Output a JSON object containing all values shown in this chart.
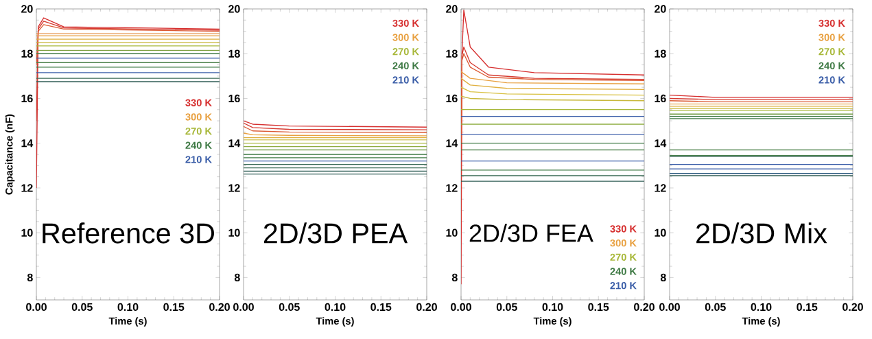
{
  "chart_data": [
    {
      "type": "line",
      "title": "Reference 3D",
      "ylabel": "Capacitance (nF)",
      "xlabel": "Time (s)",
      "xlim": [
        0,
        0.2
      ],
      "ylim": [
        7,
        20
      ],
      "xticks": [
        {
          "value": 0,
          "label": "0.00"
        },
        {
          "value": 0.05,
          "label": "0.05"
        },
        {
          "value": 0.1,
          "label": "0.10"
        },
        {
          "value": 0.15,
          "label": "0.15"
        },
        {
          "value": 0.2,
          "label": "0.20"
        }
      ],
      "yticks": [
        8,
        10,
        12,
        14,
        16,
        18,
        20
      ],
      "legend": "right",
      "marker": "none",
      "line_style": "solid",
      "series": [
        {
          "name": "330 K",
          "color": "#d62f2f",
          "x": [
            0,
            0.002,
            0.008,
            0.03,
            0.2
          ],
          "values": [
            12.0,
            19.2,
            19.6,
            19.2,
            19.1
          ]
        },
        {
          "color": "#d63a30",
          "x": [
            0,
            0.002,
            0.008,
            0.03,
            0.2
          ],
          "values": [
            15.0,
            19.1,
            19.45,
            19.15,
            19.05
          ]
        },
        {
          "color": "#dc5a34",
          "x": [
            0,
            0.002,
            0.008,
            0.03,
            0.2
          ],
          "values": [
            17.5,
            19.0,
            19.3,
            19.1,
            19.0
          ]
        },
        {
          "color": "#e38a3c",
          "x": [
            0,
            0.2
          ],
          "values": [
            18.9,
            18.9
          ]
        },
        {
          "name": "300 K",
          "color": "#e8a040",
          "x": [
            0,
            0.2
          ],
          "values": [
            18.8,
            18.8
          ]
        },
        {
          "color": "#e0b040",
          "x": [
            0,
            0.2
          ],
          "values": [
            18.65,
            18.65
          ]
        },
        {
          "color": "#c8b83c",
          "x": [
            0,
            0.2
          ],
          "values": [
            18.5,
            18.5
          ]
        },
        {
          "name": "270 K",
          "color": "#a8b83a",
          "x": [
            0,
            0.2
          ],
          "values": [
            18.35,
            18.35
          ]
        },
        {
          "color": "#7ea040",
          "x": [
            0,
            0.2
          ],
          "values": [
            18.15,
            18.15
          ]
        },
        {
          "name": "240 K",
          "color": "#3f7a45",
          "x": [
            0,
            0.2
          ],
          "values": [
            18.0,
            18.0
          ]
        },
        {
          "name": "210 K",
          "color": "#3b5ea8",
          "x": [
            0,
            0.2
          ],
          "values": [
            17.8,
            17.8
          ]
        },
        {
          "color": "#4a8048",
          "x": [
            0,
            0.2
          ],
          "values": [
            17.6,
            17.6
          ]
        },
        {
          "color": "#3f7a45",
          "x": [
            0,
            0.2
          ],
          "values": [
            17.4,
            17.4
          ]
        },
        {
          "color": "#3b5ea8",
          "x": [
            0,
            0.2
          ],
          "values": [
            17.15,
            17.15
          ]
        },
        {
          "color": "#3a6a55",
          "x": [
            0,
            0.2
          ],
          "values": [
            16.9,
            16.9
          ]
        },
        {
          "color": "#2f5d55",
          "x": [
            0,
            0.2
          ],
          "values": [
            16.75,
            16.75
          ]
        }
      ]
    },
    {
      "type": "line",
      "title": "2D/3D PEA",
      "xlabel": "Time (s)",
      "xlim": [
        0,
        0.2
      ],
      "ylim": [
        7,
        20
      ],
      "xticks": [
        {
          "value": 0,
          "label": "0.00"
        },
        {
          "value": 0.05,
          "label": "0.05"
        },
        {
          "value": 0.1,
          "label": "0.10"
        },
        {
          "value": 0.15,
          "label": "0.15"
        },
        {
          "value": 0.2,
          "label": "0.20"
        }
      ],
      "yticks": [
        8,
        10,
        12,
        14,
        16,
        18,
        20
      ],
      "legend": "top right",
      "marker": "none",
      "line_style": "solid",
      "series": [
        {
          "name": "330 K",
          "color": "#d62f2f",
          "x": [
            0,
            0.01,
            0.05,
            0.2
          ],
          "values": [
            15.0,
            14.85,
            14.77,
            14.72
          ]
        },
        {
          "color": "#d63a30",
          "x": [
            0,
            0.01,
            0.05,
            0.2
          ],
          "values": [
            14.9,
            14.7,
            14.62,
            14.6
          ]
        },
        {
          "color": "#dc5a34",
          "x": [
            0,
            0.01,
            0.05,
            0.2
          ],
          "values": [
            14.75,
            14.55,
            14.5,
            14.48
          ]
        },
        {
          "name": "300 K",
          "color": "#e8a040",
          "x": [
            0,
            0.01,
            0.05,
            0.2
          ],
          "values": [
            14.45,
            14.38,
            14.35,
            14.33
          ]
        },
        {
          "color": "#e0b040",
          "x": [
            0,
            0.2
          ],
          "values": [
            14.25,
            14.25
          ]
        },
        {
          "color": "#c8b83c",
          "x": [
            0,
            0.2
          ],
          "values": [
            14.15,
            14.15
          ]
        },
        {
          "name": "270 K",
          "color": "#a8b83a",
          "x": [
            0,
            0.2
          ],
          "values": [
            14.0,
            14.0
          ]
        },
        {
          "color": "#8eac40",
          "x": [
            0,
            0.2
          ],
          "values": [
            13.85,
            13.85
          ]
        },
        {
          "color": "#6e9a42",
          "x": [
            0,
            0.2
          ],
          "values": [
            13.7,
            13.7
          ]
        },
        {
          "name": "240 K",
          "color": "#3f7a45",
          "x": [
            0,
            0.2
          ],
          "values": [
            13.5,
            13.5
          ]
        },
        {
          "color": "#3f7a45",
          "x": [
            0,
            0.2
          ],
          "values": [
            13.35,
            13.35
          ]
        },
        {
          "name": "210 K",
          "color": "#3b5ea8",
          "x": [
            0,
            0.2
          ],
          "values": [
            13.2,
            13.2
          ]
        },
        {
          "color": "#3a6a55",
          "x": [
            0,
            0.2
          ],
          "values": [
            13.05,
            13.05
          ]
        },
        {
          "color": "#3a6a55",
          "x": [
            0,
            0.2
          ],
          "values": [
            12.9,
            12.9
          ]
        },
        {
          "color": "#2f5d55",
          "x": [
            0,
            0.2
          ],
          "values": [
            12.75,
            12.75
          ]
        },
        {
          "color": "#2f5d55",
          "x": [
            0,
            0.2
          ],
          "values": [
            12.62,
            12.62
          ]
        }
      ]
    },
    {
      "type": "line",
      "title": "2D/3D FEA",
      "xlabel": "Time (s)",
      "xlim": [
        0,
        0.2
      ],
      "ylim": [
        7,
        20
      ],
      "xticks": [
        {
          "value": 0,
          "label": "0.00"
        },
        {
          "value": 0.05,
          "label": "0.05"
        },
        {
          "value": 0.1,
          "label": "0.10"
        },
        {
          "value": 0.15,
          "label": "0.15"
        },
        {
          "value": 0.2,
          "label": "0.20"
        }
      ],
      "yticks": [
        8,
        10,
        12,
        14,
        16,
        18,
        20
      ],
      "legend": "bottom right",
      "marker": "none",
      "line_style": "solid",
      "series": [
        {
          "name": "330 K",
          "color": "#d62f2f",
          "x": [
            0,
            0.001,
            0.003,
            0.01,
            0.03,
            0.08,
            0.2
          ],
          "values": [
            7.7,
            18.0,
            19.95,
            18.3,
            17.4,
            17.15,
            17.05
          ]
        },
        {
          "color": "#d63a30",
          "x": [
            0,
            0.001,
            0.003,
            0.01,
            0.03,
            0.08,
            0.2
          ],
          "values": [
            10.5,
            17.9,
            18.3,
            17.6,
            17.05,
            16.9,
            16.85
          ]
        },
        {
          "color": "#dc5a34",
          "x": [
            0,
            0.001,
            0.003,
            0.01,
            0.03,
            0.08,
            0.2
          ],
          "values": [
            14.0,
            17.7,
            18.0,
            17.4,
            16.95,
            16.85,
            16.8
          ]
        },
        {
          "name": "300 K",
          "color": "#e8a040",
          "x": [
            0,
            0.01,
            0.05,
            0.2
          ],
          "values": [
            17.2,
            16.9,
            16.7,
            16.65
          ]
        },
        {
          "color": "#e0b040",
          "x": [
            0,
            0.01,
            0.05,
            0.2
          ],
          "values": [
            16.9,
            16.6,
            16.45,
            16.4
          ]
        },
        {
          "color": "#d8c040",
          "x": [
            0,
            0.01,
            0.05,
            0.2
          ],
          "values": [
            16.5,
            16.3,
            16.2,
            16.15
          ]
        },
        {
          "color": "#c8b83c",
          "x": [
            0,
            0.01,
            0.05,
            0.2
          ],
          "values": [
            16.1,
            16.0,
            15.95,
            15.9
          ]
        },
        {
          "name": "270 K",
          "color": "#a8b83a",
          "x": [
            0,
            0.2
          ],
          "values": [
            15.5,
            15.5
          ]
        },
        {
          "color": "#3b5ea8",
          "x": [
            0,
            0.2
          ],
          "values": [
            15.2,
            15.2
          ]
        },
        {
          "color": "#8eac40",
          "x": [
            0,
            0.2
          ],
          "values": [
            14.85,
            14.85
          ]
        },
        {
          "color": "#3b5ea8",
          "x": [
            0,
            0.2
          ],
          "values": [
            14.4,
            14.4
          ]
        },
        {
          "name": "240 K",
          "color": "#3f7a45",
          "x": [
            0,
            0.2
          ],
          "values": [
            14.0,
            14.0
          ]
        },
        {
          "color": "#4a8048",
          "x": [
            0,
            0.2
          ],
          "values": [
            13.7,
            13.7
          ]
        },
        {
          "name": "210 K",
          "color": "#3b5ea8",
          "x": [
            0,
            0.2
          ],
          "values": [
            13.2,
            13.2
          ]
        },
        {
          "color": "#3f7a45",
          "x": [
            0,
            0.2
          ],
          "values": [
            12.8,
            12.8
          ]
        },
        {
          "color": "#3a6a55",
          "x": [
            0,
            0.2
          ],
          "values": [
            12.55,
            12.55
          ]
        },
        {
          "color": "#2f5d55",
          "x": [
            0,
            0.2
          ],
          "values": [
            12.3,
            12.3
          ]
        }
      ]
    },
    {
      "type": "line",
      "title": "2D/3D Mix",
      "xlabel": "Time (s)",
      "xlim": [
        0,
        0.2
      ],
      "ylim": [
        7,
        20
      ],
      "xticks": [
        {
          "value": 0,
          "label": "0.00"
        },
        {
          "value": 0.05,
          "label": "0.05"
        },
        {
          "value": 0.1,
          "label": "0.10"
        },
        {
          "value": 0.15,
          "label": "0.15"
        },
        {
          "value": 0.2,
          "label": "0.20"
        }
      ],
      "yticks": [
        8,
        10,
        12,
        14,
        16,
        18,
        20
      ],
      "legend": "top right",
      "marker": "none",
      "line_style": "solid",
      "series": [
        {
          "name": "330 K",
          "color": "#d62f2f",
          "x": [
            0,
            0.05,
            0.2
          ],
          "values": [
            16.15,
            16.05,
            16.05
          ]
        },
        {
          "color": "#d63a30",
          "x": [
            0,
            0.05,
            0.2
          ],
          "values": [
            16.0,
            15.95,
            15.95
          ]
        },
        {
          "color": "#dc5a34",
          "x": [
            0,
            0.05,
            0.2
          ],
          "values": [
            15.9,
            15.85,
            15.85
          ]
        },
        {
          "name": "300 K",
          "color": "#e8a040",
          "x": [
            0,
            0.2
          ],
          "values": [
            15.75,
            15.75
          ]
        },
        {
          "color": "#e0b040",
          "x": [
            0,
            0.2
          ],
          "values": [
            15.65,
            15.65
          ]
        },
        {
          "color": "#c8b83c",
          "x": [
            0,
            0.2
          ],
          "values": [
            15.55,
            15.55
          ]
        },
        {
          "name": "270 K",
          "color": "#a8b83a",
          "x": [
            0,
            0.2
          ],
          "values": [
            15.45,
            15.45
          ]
        },
        {
          "color": "#6e9a42",
          "x": [
            0,
            0.2
          ],
          "values": [
            15.3,
            15.3
          ]
        },
        {
          "name": "240 K",
          "color": "#3f7a45",
          "x": [
            0,
            0.2
          ],
          "values": [
            15.2,
            15.2
          ]
        },
        {
          "color": "#3f7a45",
          "x": [
            0,
            0.2
          ],
          "values": [
            15.1,
            15.1
          ]
        },
        {
          "color": "#4a8048",
          "x": [
            0,
            0.2
          ],
          "values": [
            13.7,
            13.7
          ]
        },
        {
          "color": "#3f7a45",
          "x": [
            0,
            0.2
          ],
          "values": [
            13.45,
            13.45
          ]
        },
        {
          "color": "#3a6a55",
          "x": [
            0,
            0.2
          ],
          "values": [
            13.4,
            13.4
          ]
        },
        {
          "name": "210 K",
          "color": "#3b5ea8",
          "x": [
            0,
            0.2
          ],
          "values": [
            13.05,
            13.05
          ]
        },
        {
          "color": "#3b5ea8",
          "x": [
            0,
            0.2
          ],
          "values": [
            12.85,
            12.85
          ]
        },
        {
          "color": "#2f5d80",
          "x": [
            0,
            0.2
          ],
          "values": [
            12.65,
            12.65
          ]
        },
        {
          "color": "#2f5d55",
          "x": [
            0,
            0.2
          ],
          "values": [
            12.55,
            12.55
          ]
        }
      ]
    }
  ]
}
